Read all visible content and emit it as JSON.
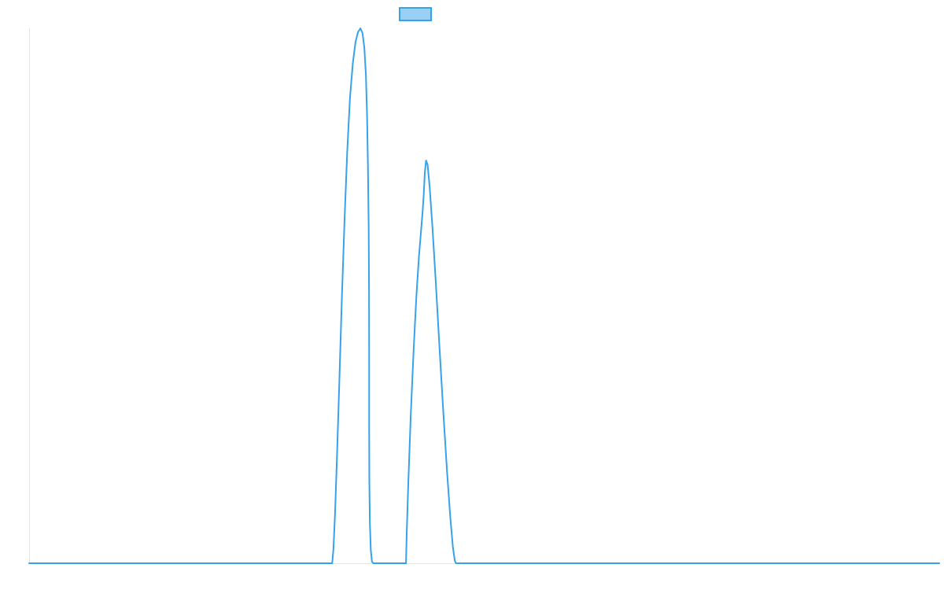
{
  "chart_data": {
    "type": "line",
    "title": "",
    "xlabel": "",
    "ylabel": "",
    "grid": false,
    "legend": "top-center",
    "xlim": [
      0,
      1000
    ],
    "ylim": [
      0,
      100
    ],
    "colors": {
      "line": "#36a2eb",
      "legend_fill": "#9ad0f5",
      "axis": "#e5e5e5",
      "background": "#ffffff"
    },
    "series": [
      {
        "name": "",
        "x": [
          0,
          100,
          200,
          300,
          333,
          334.4,
          336.2,
          338.3,
          340.8,
          343.5,
          346.5,
          349.5,
          352.5,
          355.6,
          358.6,
          361.4,
          364,
          366.3,
          368.3,
          370,
          371.3,
          372.3,
          373.1,
          373.5,
          373.6,
          373.6,
          373.8,
          374.4,
          375.4,
          376.7,
          378.4,
          380.4,
          382.8,
          385.4,
          388.1,
          391,
          394,
          397,
          399.8,
          402.6,
          405.2,
          407.6,
          409.6,
          411.3,
          412.6,
          413.5,
          414,
          414.1,
          414.8,
          416.6,
          419.3,
          422.5,
          425.6,
          428.3,
          430.6,
          432.3,
          433.6,
          434.7,
          436.1,
          437.8,
          440.1,
          443.1,
          446.8,
          450.8,
          455.1,
          459.2,
          462.8,
          465.6,
          467.7,
          468.9,
          469.5,
          469.7,
          500,
          600,
          700,
          800,
          900,
          1000
        ],
        "y": [
          0,
          0,
          0,
          0,
          0,
          2.7,
          9.6,
          20.1,
          33.7,
          48.9,
          63.9,
          76.9,
          86.9,
          93.4,
          97.4,
          99.3,
          100,
          99.1,
          96.4,
          91.4,
          83.8,
          74,
          62.6,
          50.3,
          37.6,
          25.7,
          15.4,
          7.6,
          2.5,
          0.3,
          0,
          0,
          0,
          0,
          0,
          0,
          0,
          0,
          0,
          0,
          0,
          0,
          0,
          0,
          0,
          0,
          0,
          0,
          5.2,
          14.9,
          27.6,
          40,
          50.2,
          57.3,
          62.1,
          65.6,
          69,
          72.8,
          75.3,
          74.5,
          70.3,
          62.9,
          52.6,
          40.6,
          28.2,
          17.1,
          8.5,
          3,
          0.5,
          0,
          0,
          0,
          0,
          0,
          0,
          0,
          0,
          0
        ]
      }
    ]
  }
}
